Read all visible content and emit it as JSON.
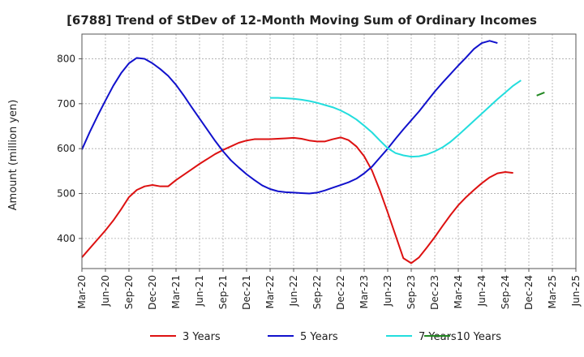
{
  "chart_data": {
    "type": "line",
    "title": "[6788]  Trend of StDev of 12-Month Moving Sum of Ordinary Incomes",
    "xlabel": "",
    "ylabel": "Amount (million yen)",
    "x_ticks": [
      "Mar-20",
      "Jun-20",
      "Sep-20",
      "Dec-20",
      "Mar-21",
      "Jun-21",
      "Sep-21",
      "Dec-21",
      "Mar-22",
      "Jun-22",
      "Sep-22",
      "Dec-22",
      "Mar-23",
      "Jun-23",
      "Sep-23",
      "Dec-23",
      "Mar-24",
      "Jun-24",
      "Sep-24",
      "Dec-24",
      "Mar-25",
      "Jun-25"
    ],
    "y_ticks": [
      400,
      500,
      600,
      700,
      800
    ],
    "ylim": [
      333,
      855
    ],
    "grid": true,
    "legend_position": "bottom",
    "series": [
      {
        "name": "3 Years",
        "color": "#dd1111",
        "start": "Mar-20",
        "values": [
          358,
          378,
          398,
          418,
          440,
          465,
          492,
          508,
          516,
          519,
          516,
          516,
          530,
          542,
          554,
          566,
          577,
          588,
          597,
          605,
          613,
          618,
          621,
          621,
          621,
          622,
          623,
          624,
          622,
          618,
          616,
          616,
          621,
          625,
          619,
          605,
          583,
          551,
          507,
          458,
          407,
          356,
          345,
          358,
          380,
          403,
          428,
          452,
          474,
          492,
          508,
          523,
          536,
          545,
          548,
          546
        ]
      },
      {
        "name": "5 Years",
        "color": "#1111cc",
        "start": "Mar-20",
        "values": [
          598,
          637,
          673,
          707,
          740,
          768,
          790,
          802,
          800,
          790,
          777,
          762,
          742,
          718,
          692,
          667,
          642,
          617,
          594,
          574,
          558,
          543,
          530,
          518,
          510,
          505,
          503,
          502,
          501,
          500,
          502,
          507,
          513,
          519,
          525,
          533,
          545,
          560,
          580,
          600,
          622,
          643,
          663,
          683,
          705,
          727,
          747,
          766,
          785,
          803,
          822,
          835,
          840,
          835
        ]
      },
      {
        "name": "7 Years",
        "color": "#22dddd",
        "start": "Mar-22",
        "values": [
          713,
          713,
          712,
          711,
          709,
          706,
          702,
          697,
          692,
          685,
          676,
          665,
          651,
          636,
          618,
          601,
          590,
          585,
          582,
          583,
          587,
          594,
          603,
          615,
          630,
          646,
          662,
          678,
          694,
          710,
          725,
          740,
          752
        ]
      },
      {
        "name": "10 Years",
        "color": "#228822",
        "start": "Jan-25",
        "values": [
          718,
          725
        ]
      }
    ]
  }
}
